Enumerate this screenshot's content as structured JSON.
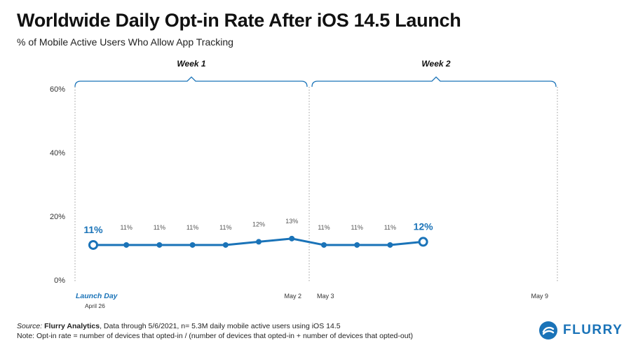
{
  "title": "Worldwide Daily Opt-in Rate After iOS 14.5 Launch",
  "subtitle": "% of Mobile Active Users Who Allow App Tracking",
  "footer": {
    "source_label": "Source:",
    "source_org": "Flurry Analytics",
    "source_rest": ", Data through 5/6/2021, n= 5.3M daily mobile active users using iOS 14.5",
    "note": "Note: Opt-in rate = number of devices that opted-in / (number of devices that opted-in + number of devices that opted-out)"
  },
  "logo": {
    "text": "FLURRY",
    "color": "#1a73b8"
  },
  "chart_data": {
    "type": "line",
    "title": "Worldwide Daily Opt-in Rate After iOS 14.5 Launch",
    "subtitle": "% of Mobile Active Users Who Allow App Tracking",
    "ylim": [
      0,
      60
    ],
    "yticks": [
      0,
      20,
      40,
      60
    ],
    "ytick_labels": [
      "0%",
      "20%",
      "40%",
      "60%"
    ],
    "grid": false,
    "color": "#1a73b8",
    "x_range": [
      "2021-04-26",
      "2021-05-09"
    ],
    "x": [
      "2021-04-26",
      "2021-04-27",
      "2021-04-28",
      "2021-04-29",
      "2021-04-30",
      "2021-05-01",
      "2021-05-02",
      "2021-05-03",
      "2021-05-04",
      "2021-05-05",
      "2021-05-06"
    ],
    "values": [
      11,
      11,
      11,
      11,
      11,
      12,
      13,
      11,
      11,
      11,
      12
    ],
    "data_labels": [
      "11%",
      "11%",
      "11%",
      "11%",
      "11%",
      "12%",
      "13%",
      "11%",
      "11%",
      "11%",
      "12%"
    ],
    "emphasized_points": [
      0,
      10
    ],
    "week_brackets": [
      {
        "label": "Week 1",
        "start": "2021-04-26",
        "end": "2021-05-02"
      },
      {
        "label": "Week 2",
        "start": "2021-05-03",
        "end": "2021-05-09"
      }
    ],
    "x_tick_labels": [
      {
        "date": "2021-04-26",
        "label": "Launch Day",
        "sublabel": "April 26",
        "emphasis": true,
        "align": "start"
      },
      {
        "date": "2021-05-02",
        "label": "May 2",
        "align": "end"
      },
      {
        "date": "2021-05-03",
        "label": "May 3",
        "align": "start"
      },
      {
        "date": "2021-05-09",
        "label": "May 9",
        "align": "end"
      }
    ]
  }
}
